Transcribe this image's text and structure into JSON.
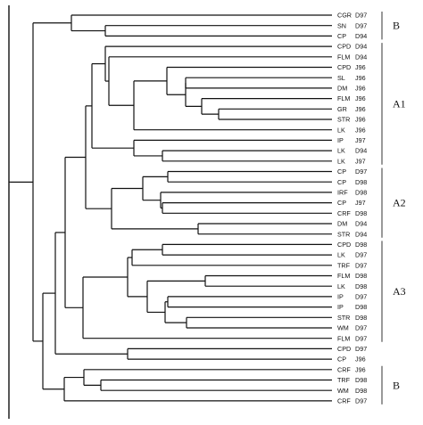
{
  "leaves": [
    {
      "name": "CGR",
      "code": "D97"
    },
    {
      "name": "SN",
      "code": "D97"
    },
    {
      "name": "CP",
      "code": "D94"
    },
    {
      "name": "CPD",
      "code": "D94"
    },
    {
      "name": "FLM",
      "code": "D94"
    },
    {
      "name": "CPD",
      "code": "J96"
    },
    {
      "name": "SL",
      "code": "J96"
    },
    {
      "name": "DM",
      "code": "J96"
    },
    {
      "name": "FLM",
      "code": "J96"
    },
    {
      "name": "GR",
      "code": "J96"
    },
    {
      "name": "STR",
      "code": "J96"
    },
    {
      "name": "LK",
      "code": "J96"
    },
    {
      "name": "IP",
      "code": "J97"
    },
    {
      "name": "LK",
      "code": "D94"
    },
    {
      "name": "LK",
      "code": "J97"
    },
    {
      "name": "CP",
      "code": "D97"
    },
    {
      "name": "CP",
      "code": "D98"
    },
    {
      "name": "IRF",
      "code": "D98"
    },
    {
      "name": "CP",
      "code": "J97"
    },
    {
      "name": "CRF",
      "code": "D98"
    },
    {
      "name": "DM",
      "code": "D94"
    },
    {
      "name": "STR",
      "code": "D94"
    },
    {
      "name": "CPD",
      "code": "D98"
    },
    {
      "name": "LK",
      "code": "D97"
    },
    {
      "name": "TRF",
      "code": "D97"
    },
    {
      "name": "FLM",
      "code": "D98"
    },
    {
      "name": "LK",
      "code": "D98"
    },
    {
      "name": "IP",
      "code": "D97"
    },
    {
      "name": "IP",
      "code": "D98"
    },
    {
      "name": "STR",
      "code": "D98"
    },
    {
      "name": "WM",
      "code": "D97"
    },
    {
      "name": "FLM",
      "code": "D97"
    },
    {
      "name": "CPD",
      "code": "D97"
    },
    {
      "name": "CP",
      "code": "J96"
    },
    {
      "name": "CRF",
      "code": "J96"
    },
    {
      "name": "TRF",
      "code": "D98"
    },
    {
      "name": "WM",
      "code": "D98"
    },
    {
      "name": "CRF",
      "code": "D97"
    }
  ],
  "groups": [
    {
      "label": "B",
      "from": 0,
      "to": 2
    },
    {
      "label": "A1",
      "from": 3,
      "to": 14
    },
    {
      "label": "A2",
      "from": 15,
      "to": 21
    },
    {
      "label": "A3",
      "from": 22,
      "to": 31
    },
    {
      "label": "B",
      "from": 34,
      "to": 37
    }
  ]
}
